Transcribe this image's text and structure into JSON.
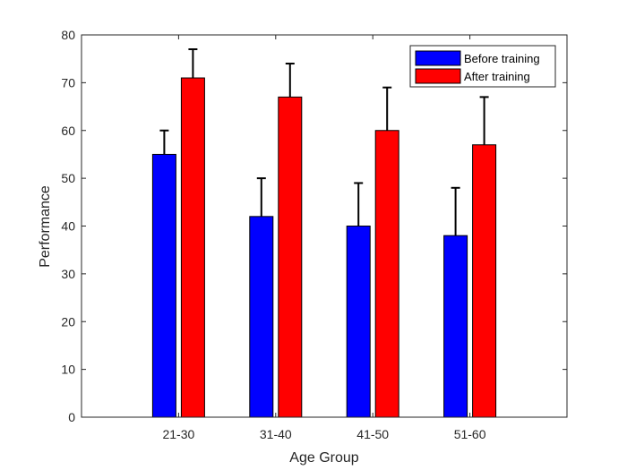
{
  "chart_data": {
    "type": "bar",
    "title": "",
    "xlabel": "Age Group",
    "ylabel": "Performance",
    "categories": [
      "21-30",
      "31-40",
      "41-50",
      "51-60"
    ],
    "ylim": [
      0,
      80
    ],
    "yticks": [
      0,
      10,
      20,
      30,
      40,
      50,
      60,
      70,
      80
    ],
    "grid": false,
    "legend_position": "top-right",
    "series": [
      {
        "name": "Before training",
        "color": "#0000ff",
        "values": [
          55,
          42,
          40,
          38
        ],
        "error_upper": [
          60,
          50,
          49,
          48
        ]
      },
      {
        "name": "After training",
        "color": "#ff0000",
        "values": [
          71,
          67,
          60,
          57
        ],
        "error_upper": [
          77,
          74,
          69,
          67
        ]
      }
    ]
  }
}
